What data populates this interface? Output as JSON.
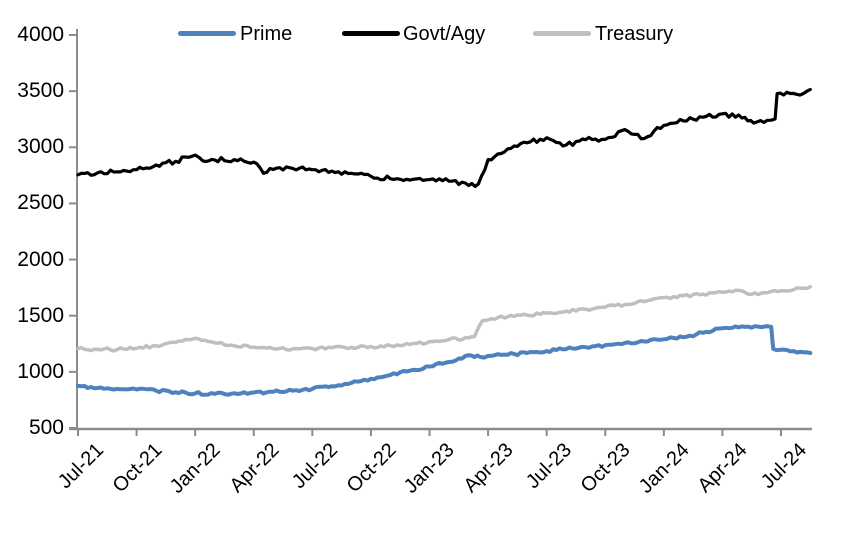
{
  "chart": {
    "legend": [
      {
        "label": "Prime",
        "color": "#4f81bd"
      },
      {
        "label": "Govt/Agy",
        "color": "#000000"
      },
      {
        "label": "Treasury",
        "color": "#bfbfbf"
      }
    ],
    "axis_color": "#8c8c8c",
    "y_tick_labels": [
      "4000",
      "3500",
      "3000",
      "2500",
      "2000",
      "1500",
      "1000",
      "500"
    ],
    "x_tick_labels": [
      "Jul-21",
      "Oct-21",
      "Jan-22",
      "Apr-22",
      "Jul-22",
      "Oct-22",
      "Jan-23",
      "Apr-23",
      "Jul-23",
      "Oct-23",
      "Jan-24",
      "Apr-24",
      "Jul-24"
    ]
  },
  "chart_data": {
    "type": "line",
    "title": "",
    "xlabel": "",
    "ylabel": "",
    "ylim": [
      500,
      4000
    ],
    "y_tick_step": 500,
    "grid": false,
    "legend_position": "top",
    "x_unit": "months since Jul-2021 (fractional x = intra-month event)",
    "x_range": [
      0,
      37.5
    ],
    "x_tick_positions": [
      0,
      3,
      6,
      9,
      12,
      15,
      18,
      21,
      24,
      27,
      30,
      33,
      36
    ],
    "x_tick_labels": [
      "Jul-21",
      "Oct-21",
      "Jan-22",
      "Apr-22",
      "Jul-22",
      "Oct-22",
      "Jan-23",
      "Apr-23",
      "Jul-23",
      "Oct-23",
      "Jan-24",
      "Apr-24",
      "Jul-24"
    ],
    "series": [
      {
        "name": "Treasury",
        "color": "#bfbfbf",
        "width": 3.5,
        "noise_amp": 1.5,
        "points": [
          [
            0,
            1205
          ],
          [
            1,
            1200
          ],
          [
            2,
            1198
          ],
          [
            3,
            1210
          ],
          [
            4,
            1232
          ],
          [
            5,
            1262
          ],
          [
            6,
            1300
          ],
          [
            7,
            1258
          ],
          [
            8,
            1232
          ],
          [
            9,
            1220
          ],
          [
            10,
            1205
          ],
          [
            11,
            1205
          ],
          [
            12,
            1208
          ],
          [
            13,
            1214
          ],
          [
            14,
            1220
          ],
          [
            15,
            1226
          ],
          [
            16,
            1233
          ],
          [
            17,
            1244
          ],
          [
            18,
            1270
          ],
          [
            19,
            1288
          ],
          [
            20,
            1302
          ],
          [
            20.3,
            1312
          ],
          [
            20.7,
            1455
          ],
          [
            21.5,
            1482
          ],
          [
            22,
            1490
          ],
          [
            23,
            1505
          ],
          [
            24,
            1522
          ],
          [
            25,
            1542
          ],
          [
            26,
            1558
          ],
          [
            27,
            1578
          ],
          [
            28,
            1600
          ],
          [
            29,
            1625
          ],
          [
            30,
            1660
          ],
          [
            31,
            1678
          ],
          [
            32,
            1692
          ],
          [
            33,
            1710
          ],
          [
            34,
            1722
          ],
          [
            34.5,
            1692
          ],
          [
            35,
            1702
          ],
          [
            36,
            1722
          ],
          [
            37,
            1745
          ],
          [
            37.5,
            1758
          ]
        ]
      },
      {
        "name": "Prime",
        "color": "#4f81bd",
        "width": 4,
        "noise_amp": 1.4,
        "points": [
          [
            0,
            875
          ],
          [
            1,
            856
          ],
          [
            2,
            848
          ],
          [
            3,
            843
          ],
          [
            4,
            832
          ],
          [
            5,
            818
          ],
          [
            6,
            808
          ],
          [
            7,
            804
          ],
          [
            8,
            810
          ],
          [
            9,
            816
          ],
          [
            10,
            822
          ],
          [
            11,
            832
          ],
          [
            12,
            848
          ],
          [
            13,
            872
          ],
          [
            14,
            902
          ],
          [
            15,
            938
          ],
          [
            16,
            972
          ],
          [
            17,
            1010
          ],
          [
            18,
            1048
          ],
          [
            19,
            1088
          ],
          [
            20,
            1148
          ],
          [
            20.6,
            1132
          ],
          [
            21,
            1142
          ],
          [
            22,
            1152
          ],
          [
            23,
            1168
          ],
          [
            24,
            1185
          ],
          [
            25,
            1203
          ],
          [
            26,
            1220
          ],
          [
            27,
            1237
          ],
          [
            28,
            1257
          ],
          [
            29,
            1270
          ],
          [
            30,
            1290
          ],
          [
            31,
            1308
          ],
          [
            32,
            1348
          ],
          [
            33,
            1388
          ],
          [
            34,
            1405
          ],
          [
            35,
            1398
          ],
          [
            35.5,
            1400
          ],
          [
            35.6,
            1205
          ],
          [
            36.3,
            1195
          ],
          [
            37,
            1178
          ],
          [
            37.5,
            1168
          ]
        ]
      },
      {
        "name": "Govt/Agy",
        "color": "#000000",
        "width": 3.2,
        "noise_amp": 2.3,
        "points": [
          [
            0,
            2755
          ],
          [
            1,
            2772
          ],
          [
            2,
            2782
          ],
          [
            3,
            2800
          ],
          [
            4,
            2842
          ],
          [
            5,
            2875
          ],
          [
            6,
            2930
          ],
          [
            6.4,
            2878
          ],
          [
            7,
            2888
          ],
          [
            8,
            2890
          ],
          [
            9,
            2868
          ],
          [
            9.5,
            2768
          ],
          [
            10,
            2802
          ],
          [
            11,
            2812
          ],
          [
            12,
            2800
          ],
          [
            13,
            2788
          ],
          [
            14,
            2768
          ],
          [
            15,
            2742
          ],
          [
            16,
            2720
          ],
          [
            17,
            2708
          ],
          [
            18,
            2712
          ],
          [
            19,
            2698
          ],
          [
            20,
            2660
          ],
          [
            20.5,
            2672
          ],
          [
            21,
            2890
          ],
          [
            21.5,
            2940
          ],
          [
            22,
            2985
          ],
          [
            23,
            3040
          ],
          [
            24,
            3085
          ],
          [
            25,
            3020
          ],
          [
            26,
            3068
          ],
          [
            27,
            3070
          ],
          [
            28,
            3158
          ],
          [
            29,
            3078
          ],
          [
            30,
            3195
          ],
          [
            31,
            3235
          ],
          [
            32,
            3268
          ],
          [
            33,
            3298
          ],
          [
            34,
            3262
          ],
          [
            34.6,
            3215
          ],
          [
            35.3,
            3240
          ],
          [
            35.7,
            3252
          ],
          [
            35.8,
            3478
          ],
          [
            36.3,
            3490
          ],
          [
            36.8,
            3472
          ],
          [
            37.5,
            3515
          ]
        ]
      }
    ]
  }
}
